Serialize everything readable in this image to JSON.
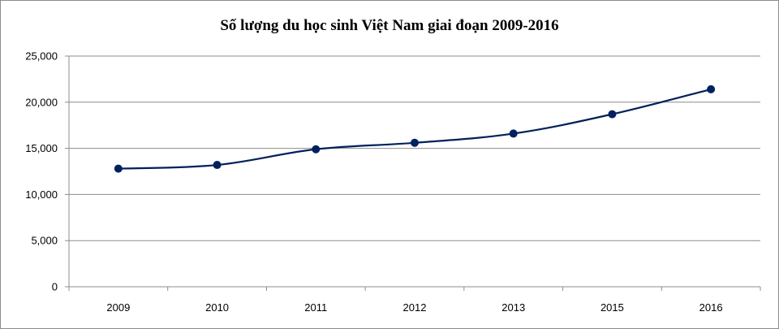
{
  "chart_data": {
    "type": "line",
    "title": "Số lượng du học sinh Việt Nam giai đoạn 2009-2016",
    "categories": [
      "2009",
      "2010",
      "2011",
      "2012",
      "2013",
      "2015",
      "2016"
    ],
    "series": [
      {
        "values": [
          12800,
          13200,
          14900,
          15600,
          16600,
          18700,
          21400
        ]
      }
    ],
    "ylim": [
      0,
      25000
    ],
    "yticks": [
      0,
      5000,
      10000,
      15000,
      20000,
      25000
    ],
    "ytick_labels": [
      "0",
      "5,000",
      "10,000",
      "15,000",
      "20,000",
      "25,000"
    ],
    "grid": true,
    "legend": "none",
    "colors": {
      "line": "#00205b",
      "marker": "#002060",
      "grid": "#8c8c8c"
    }
  }
}
